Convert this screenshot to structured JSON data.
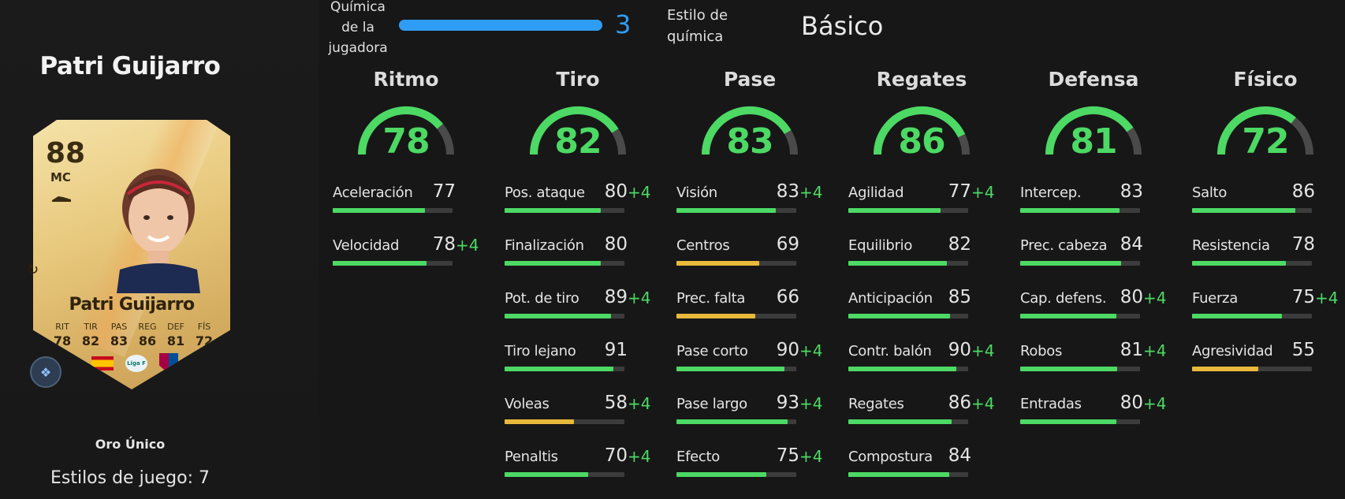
{
  "player": {
    "name": "Patri Guijarro",
    "card_name": "Patri Guijarro",
    "rating": "88",
    "position": "MC",
    "rarity": "Oro Único",
    "playstyles_label": "Estilos de juego: 7",
    "card_stats": [
      {
        "label": "RIT",
        "value": "78"
      },
      {
        "label": "TIR",
        "value": "82"
      },
      {
        "label": "PAS",
        "value": "83"
      },
      {
        "label": "REG",
        "value": "86"
      },
      {
        "label": "DEF",
        "value": "81"
      },
      {
        "label": "FÍS",
        "value": "72"
      }
    ],
    "badges": {
      "league": "Liga F"
    }
  },
  "chemistry": {
    "label_line1": "Química",
    "label_line2": "de la",
    "label_line3": "jugadora",
    "value": "3",
    "fill_fraction": 1.0,
    "style_label_line1": "Estilo de",
    "style_label_line2": "química",
    "style_value": "Básico",
    "color": "#2f9df5"
  },
  "colors": {
    "green": "#4cd964",
    "yellow": "#e8b93a",
    "gauge_track": "#4a4a4a"
  },
  "columns": [
    {
      "title": "Ritmo",
      "value": "78",
      "rows": [
        {
          "label": "Aceleración",
          "value": "77",
          "boost": ""
        },
        {
          "label": "Velocidad",
          "value": "78",
          "boost": "+4"
        }
      ]
    },
    {
      "title": "Tiro",
      "value": "82",
      "rows": [
        {
          "label": "Pos. ataque",
          "value": "80",
          "boost": "+4"
        },
        {
          "label": "Finalización",
          "value": "80",
          "boost": ""
        },
        {
          "label": "Pot. de tiro",
          "value": "89",
          "boost": "+4"
        },
        {
          "label": "Tiro lejano",
          "value": "91",
          "boost": ""
        },
        {
          "label": "Voleas",
          "value": "58",
          "boost": "+4"
        },
        {
          "label": "Penaltis",
          "value": "70",
          "boost": "+4"
        }
      ]
    },
    {
      "title": "Pase",
      "value": "83",
      "rows": [
        {
          "label": "Visión",
          "value": "83",
          "boost": "+4"
        },
        {
          "label": "Centros",
          "value": "69",
          "boost": ""
        },
        {
          "label": "Prec. falta",
          "value": "66",
          "boost": ""
        },
        {
          "label": "Pase corto",
          "value": "90",
          "boost": "+4"
        },
        {
          "label": "Pase largo",
          "value": "93",
          "boost": "+4"
        },
        {
          "label": "Efecto",
          "value": "75",
          "boost": "+4"
        }
      ]
    },
    {
      "title": "Regates",
      "value": "86",
      "rows": [
        {
          "label": "Agilidad",
          "value": "77",
          "boost": "+4"
        },
        {
          "label": "Equilibrio",
          "value": "82",
          "boost": ""
        },
        {
          "label": "Anticipación",
          "value": "85",
          "boost": ""
        },
        {
          "label": "Contr. balón",
          "value": "90",
          "boost": "+4"
        },
        {
          "label": "Regates",
          "value": "86",
          "boost": "+4"
        },
        {
          "label": "Compostura",
          "value": "84",
          "boost": ""
        }
      ]
    },
    {
      "title": "Defensa",
      "value": "81",
      "rows": [
        {
          "label": "Intercep.",
          "value": "83",
          "boost": ""
        },
        {
          "label": "Prec. cabeza",
          "value": "84",
          "boost": ""
        },
        {
          "label": "Cap. defens.",
          "value": "80",
          "boost": "+4"
        },
        {
          "label": "Robos",
          "value": "81",
          "boost": "+4"
        },
        {
          "label": "Entradas",
          "value": "80",
          "boost": "+4"
        }
      ]
    },
    {
      "title": "Físico",
      "value": "72",
      "rows": [
        {
          "label": "Salto",
          "value": "86",
          "boost": ""
        },
        {
          "label": "Resistencia",
          "value": "78",
          "boost": ""
        },
        {
          "label": "Fuerza",
          "value": "75",
          "boost": "+4"
        },
        {
          "label": "Agresividad",
          "value": "55",
          "boost": ""
        }
      ]
    }
  ]
}
